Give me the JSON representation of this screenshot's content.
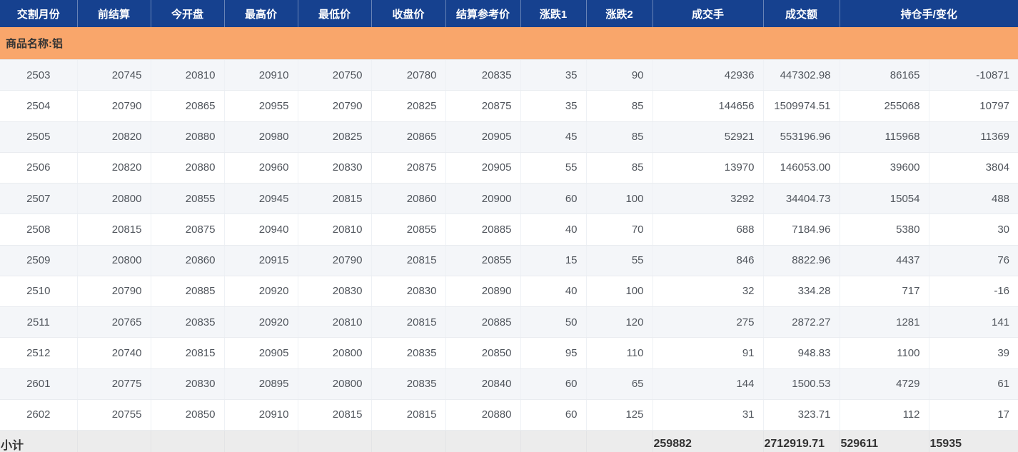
{
  "table": {
    "headers": [
      {
        "label": "交割月份"
      },
      {
        "label": "前结算"
      },
      {
        "label": "今开盘"
      },
      {
        "label": "最高价"
      },
      {
        "label": "最低价"
      },
      {
        "label": "收盘价"
      },
      {
        "label": "结算参考价"
      },
      {
        "label": "涨跌1"
      },
      {
        "label": "涨跌2"
      },
      {
        "label": "成交手"
      },
      {
        "label": "成交额"
      },
      {
        "label": "持仓手/变化"
      }
    ],
    "column_keys": [
      "delivery-month",
      "prev-settlement",
      "open",
      "high",
      "low",
      "close",
      "settlement-ref",
      "change1",
      "change2",
      "volume",
      "turnover",
      "open-interest",
      "oi-change"
    ],
    "group_label": "商品名称:铝",
    "rows": [
      [
        "2503",
        "20745",
        "20810",
        "20910",
        "20750",
        "20780",
        "20835",
        "35",
        "90",
        "42936",
        "447302.98",
        "86165",
        "-10871"
      ],
      [
        "2504",
        "20790",
        "20865",
        "20955",
        "20790",
        "20825",
        "20875",
        "35",
        "85",
        "144656",
        "1509974.51",
        "255068",
        "10797"
      ],
      [
        "2505",
        "20820",
        "20880",
        "20980",
        "20825",
        "20865",
        "20905",
        "45",
        "85",
        "52921",
        "553196.96",
        "115968",
        "11369"
      ],
      [
        "2506",
        "20820",
        "20880",
        "20960",
        "20830",
        "20875",
        "20905",
        "55",
        "85",
        "13970",
        "146053.00",
        "39600",
        "3804"
      ],
      [
        "2507",
        "20800",
        "20855",
        "20945",
        "20815",
        "20860",
        "20900",
        "60",
        "100",
        "3292",
        "34404.73",
        "15054",
        "488"
      ],
      [
        "2508",
        "20815",
        "20875",
        "20940",
        "20810",
        "20855",
        "20885",
        "40",
        "70",
        "688",
        "7184.96",
        "5380",
        "30"
      ],
      [
        "2509",
        "20800",
        "20860",
        "20915",
        "20790",
        "20815",
        "20855",
        "15",
        "55",
        "846",
        "8822.96",
        "4437",
        "76"
      ],
      [
        "2510",
        "20790",
        "20885",
        "20920",
        "20830",
        "20830",
        "20890",
        "40",
        "100",
        "32",
        "334.28",
        "717",
        "-16"
      ],
      [
        "2511",
        "20765",
        "20835",
        "20920",
        "20810",
        "20815",
        "20885",
        "50",
        "120",
        "275",
        "2872.27",
        "1281",
        "141"
      ],
      [
        "2512",
        "20740",
        "20815",
        "20905",
        "20800",
        "20835",
        "20850",
        "95",
        "110",
        "91",
        "948.83",
        "1100",
        "39"
      ],
      [
        "2601",
        "20775",
        "20830",
        "20895",
        "20800",
        "20835",
        "20840",
        "60",
        "65",
        "144",
        "1500.53",
        "4729",
        "61"
      ],
      [
        "2602",
        "20755",
        "20850",
        "20910",
        "20815",
        "20815",
        "20880",
        "60",
        "125",
        "31",
        "323.71",
        "112",
        "17"
      ]
    ],
    "subtotal": {
      "label": "小计",
      "volume": "259882",
      "turnover": "2712919.71",
      "open_interest": "529611",
      "change": "15935"
    }
  },
  "colors": {
    "header_bg": "#16418F",
    "header_text": "#FFFFFF",
    "group_row_bg": "#F9A66B",
    "alt_row_bg": "#F4F6F9",
    "row_bg": "#FFFFFF",
    "subtotal_bg": "#ECECEC",
    "data_text": "#50555C",
    "bottom_bar": "#16418F"
  }
}
